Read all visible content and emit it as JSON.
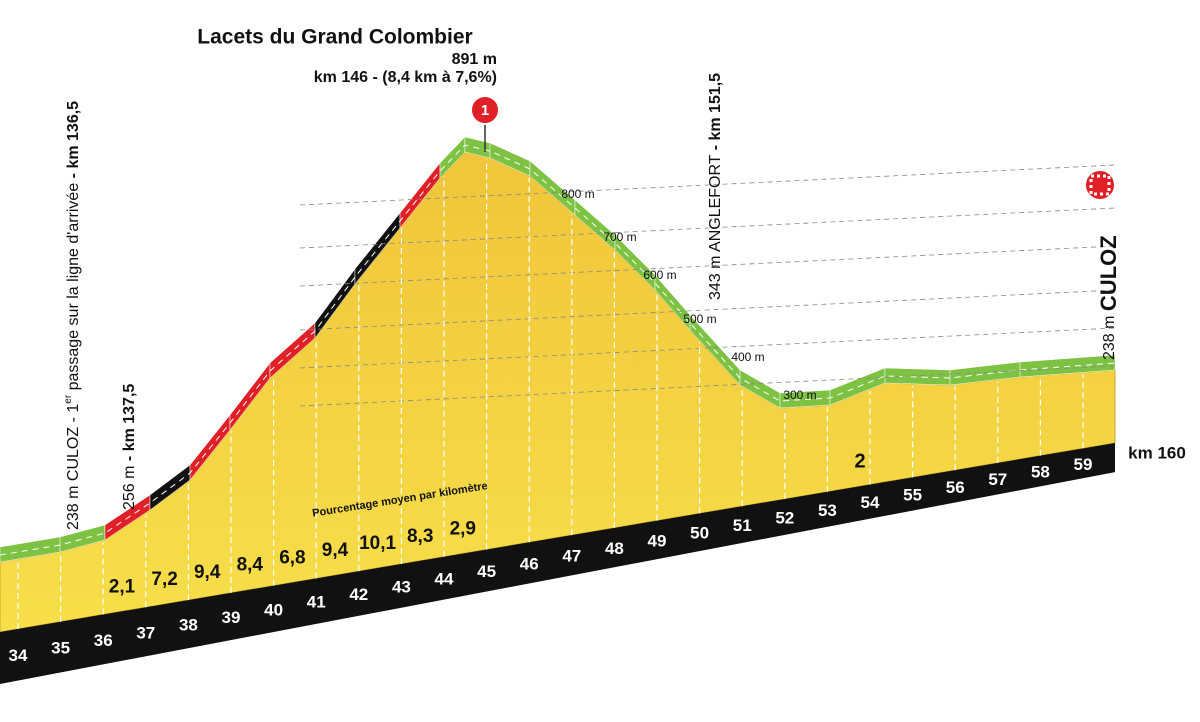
{
  "summit": {
    "name": "Lacets du Grand Colombier",
    "altitude": "891 m",
    "detail": "km 146 - (8,4 km à 7,6%)",
    "marker": "1"
  },
  "start_passage": {
    "altitude": "238 m",
    "name": "CULOZ - 1",
    "superscript": "er",
    "text": " passage sur la ligne d'arrivée",
    "km": "- km 136,5"
  },
  "second_point": {
    "altitude": "256 m",
    "km": "- km 137,5"
  },
  "anglefort": {
    "altitude": "343 m",
    "name": "ANGLEFORT",
    "km": "- km 151,5"
  },
  "finish": {
    "altitude": "238 m",
    "name": "CULOZ",
    "km": "km 160"
  },
  "altitude_labels": [
    "800 m",
    "700 m",
    "600 m",
    "500 m",
    "400 m",
    "300 m"
  ],
  "gradient_caption": "Pourcentage moyen par kilomètre",
  "gradients": [
    "2,1",
    "7,2",
    "9,4",
    "8,4",
    "6,8",
    "9,4",
    "10,1",
    "8,3",
    "2,9"
  ],
  "sprint_marker": "2",
  "km_markers": [
    "34",
    "35",
    "36",
    "37",
    "38",
    "39",
    "40",
    "41",
    "42",
    "43",
    "44",
    "45",
    "46",
    "47",
    "48",
    "49",
    "50",
    "51",
    "52",
    "53",
    "54",
    "55",
    "56",
    "57",
    "58",
    "59"
  ]
}
